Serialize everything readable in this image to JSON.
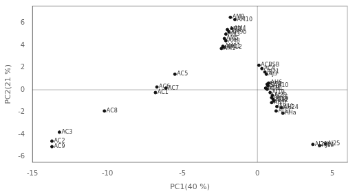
{
  "chart_data": {
    "type": "scatter",
    "xlabel": "PC1(40 %)",
    "ylabel": "PC2(21 %)",
    "x": [
      -1.8,
      -1.5,
      -2.0,
      -1.7,
      -1.9,
      -2.1,
      -2.2,
      -2.1,
      -2.3,
      -2.2,
      -2.4,
      -5.5,
      -6.7,
      -6.1,
      -6.8,
      -10.2,
      -13.2,
      -13.7,
      -13.7,
      0.1,
      0.3,
      0.5,
      0.6,
      0.75,
      0.65,
      0.7,
      0.55,
      0.65,
      0.85,
      1.0,
      0.95,
      1.05,
      1.1,
      0.95,
      1.3,
      1.6,
      1.25,
      1.7,
      3.7,
      4.15,
      4.55
    ],
    "values": [
      6.5,
      6.3,
      5.4,
      5.5,
      5.2,
      5.0,
      4.6,
      4.4,
      3.9,
      3.8,
      3.7,
      1.4,
      0.25,
      0.15,
      -0.25,
      -1.9,
      -3.8,
      -4.6,
      -5.1,
      2.2,
      1.9,
      1.6,
      1.4,
      0.6,
      0.5,
      0.35,
      0.15,
      0.05,
      -0.25,
      -0.5,
      -0.7,
      -0.85,
      -1.0,
      -1.15,
      -1.5,
      -1.6,
      -1.9,
      -2.1,
      -4.9,
      -5.0,
      -4.85
    ],
    "annotations": [
      "AM9",
      "AM10",
      "AM2",
      "AM4",
      "AM9b",
      "AM3",
      "AM5",
      "AM8",
      "AM11",
      "AM12",
      "AM1",
      "AC5",
      "AC6",
      "AC7",
      "AC1",
      "AC8",
      "AC3",
      "AC2",
      "AC9",
      "ACBSB",
      "AC4",
      "AJ21",
      "AJ3",
      "AH6",
      "AJ17",
      "SAH10",
      "ACH1",
      "AH4",
      "AJ19",
      "AJ29",
      "AH15",
      "AJ18",
      "AJ32",
      "AJ10",
      "AH11",
      "AH24",
      "AJ13",
      "AHa",
      "AJ29b",
      "AJ14",
      "AJ25"
    ],
    "color": "#111111",
    "xlim": [
      -15,
      6
    ],
    "ylim": [
      -6.5,
      7.5
    ],
    "xticks": [
      -15,
      -10,
      -5,
      0,
      5
    ],
    "yticks": [
      -6,
      -4,
      -2,
      0,
      2,
      4,
      6
    ],
    "grid": false
  }
}
